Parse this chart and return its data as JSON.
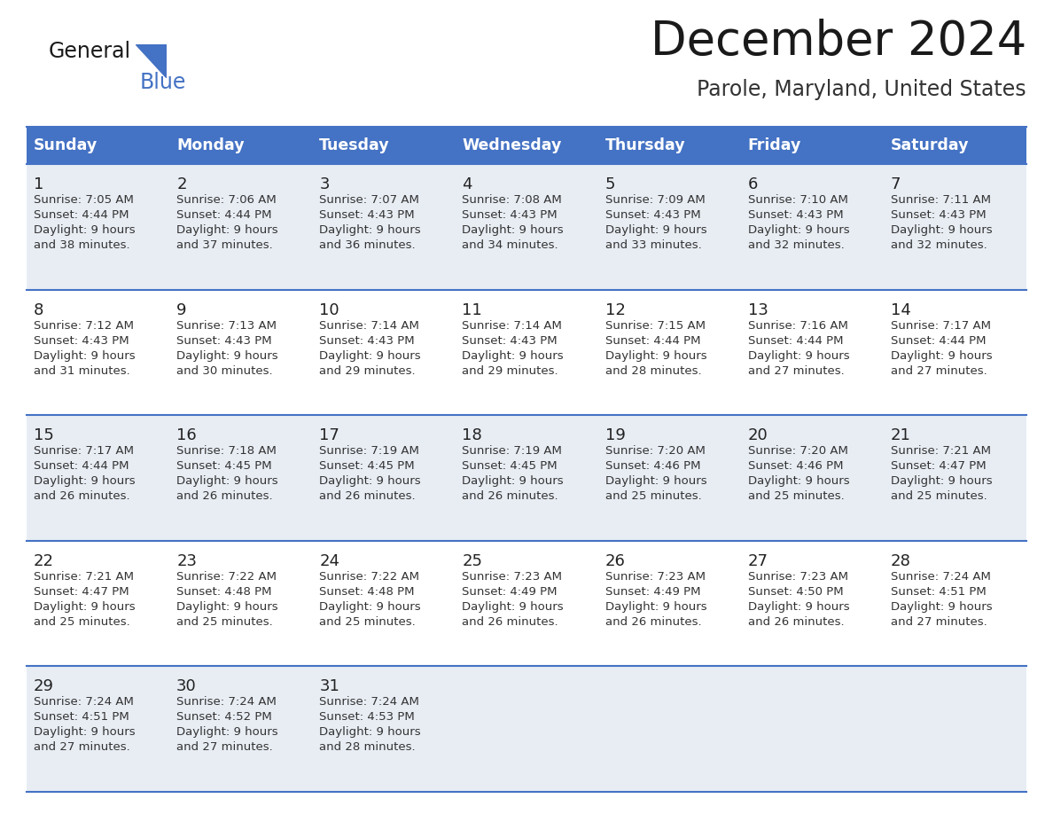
{
  "title": "December 2024",
  "subtitle": "Parole, Maryland, United States",
  "header_color": "#4472C4",
  "header_text_color": "#FFFFFF",
  "row_colors": [
    "#E8EDF4",
    "#FFFFFF"
  ],
  "day_names": [
    "Sunday",
    "Monday",
    "Tuesday",
    "Wednesday",
    "Thursday",
    "Friday",
    "Saturday"
  ],
  "weeks": [
    [
      {
        "day": 1,
        "sunrise": "7:05 AM",
        "sunset": "4:44 PM",
        "daylight": "9 hours and 38 minutes."
      },
      {
        "day": 2,
        "sunrise": "7:06 AM",
        "sunset": "4:44 PM",
        "daylight": "9 hours and 37 minutes."
      },
      {
        "day": 3,
        "sunrise": "7:07 AM",
        "sunset": "4:43 PM",
        "daylight": "9 hours and 36 minutes."
      },
      {
        "day": 4,
        "sunrise": "7:08 AM",
        "sunset": "4:43 PM",
        "daylight": "9 hours and 34 minutes."
      },
      {
        "day": 5,
        "sunrise": "7:09 AM",
        "sunset": "4:43 PM",
        "daylight": "9 hours and 33 minutes."
      },
      {
        "day": 6,
        "sunrise": "7:10 AM",
        "sunset": "4:43 PM",
        "daylight": "9 hours and 32 minutes."
      },
      {
        "day": 7,
        "sunrise": "7:11 AM",
        "sunset": "4:43 PM",
        "daylight": "9 hours and 32 minutes."
      }
    ],
    [
      {
        "day": 8,
        "sunrise": "7:12 AM",
        "sunset": "4:43 PM",
        "daylight": "9 hours and 31 minutes."
      },
      {
        "day": 9,
        "sunrise": "7:13 AM",
        "sunset": "4:43 PM",
        "daylight": "9 hours and 30 minutes."
      },
      {
        "day": 10,
        "sunrise": "7:14 AM",
        "sunset": "4:43 PM",
        "daylight": "9 hours and 29 minutes."
      },
      {
        "day": 11,
        "sunrise": "7:14 AM",
        "sunset": "4:43 PM",
        "daylight": "9 hours and 29 minutes."
      },
      {
        "day": 12,
        "sunrise": "7:15 AM",
        "sunset": "4:44 PM",
        "daylight": "9 hours and 28 minutes."
      },
      {
        "day": 13,
        "sunrise": "7:16 AM",
        "sunset": "4:44 PM",
        "daylight": "9 hours and 27 minutes."
      },
      {
        "day": 14,
        "sunrise": "7:17 AM",
        "sunset": "4:44 PM",
        "daylight": "9 hours and 27 minutes."
      }
    ],
    [
      {
        "day": 15,
        "sunrise": "7:17 AM",
        "sunset": "4:44 PM",
        "daylight": "9 hours and 26 minutes."
      },
      {
        "day": 16,
        "sunrise": "7:18 AM",
        "sunset": "4:45 PM",
        "daylight": "9 hours and 26 minutes."
      },
      {
        "day": 17,
        "sunrise": "7:19 AM",
        "sunset": "4:45 PM",
        "daylight": "9 hours and 26 minutes."
      },
      {
        "day": 18,
        "sunrise": "7:19 AM",
        "sunset": "4:45 PM",
        "daylight": "9 hours and 26 minutes."
      },
      {
        "day": 19,
        "sunrise": "7:20 AM",
        "sunset": "4:46 PM",
        "daylight": "9 hours and 25 minutes."
      },
      {
        "day": 20,
        "sunrise": "7:20 AM",
        "sunset": "4:46 PM",
        "daylight": "9 hours and 25 minutes."
      },
      {
        "day": 21,
        "sunrise": "7:21 AM",
        "sunset": "4:47 PM",
        "daylight": "9 hours and 25 minutes."
      }
    ],
    [
      {
        "day": 22,
        "sunrise": "7:21 AM",
        "sunset": "4:47 PM",
        "daylight": "9 hours and 25 minutes."
      },
      {
        "day": 23,
        "sunrise": "7:22 AM",
        "sunset": "4:48 PM",
        "daylight": "9 hours and 25 minutes."
      },
      {
        "day": 24,
        "sunrise": "7:22 AM",
        "sunset": "4:48 PM",
        "daylight": "9 hours and 25 minutes."
      },
      {
        "day": 25,
        "sunrise": "7:23 AM",
        "sunset": "4:49 PM",
        "daylight": "9 hours and 26 minutes."
      },
      {
        "day": 26,
        "sunrise": "7:23 AM",
        "sunset": "4:49 PM",
        "daylight": "9 hours and 26 minutes."
      },
      {
        "day": 27,
        "sunrise": "7:23 AM",
        "sunset": "4:50 PM",
        "daylight": "9 hours and 26 minutes."
      },
      {
        "day": 28,
        "sunrise": "7:24 AM",
        "sunset": "4:51 PM",
        "daylight": "9 hours and 27 minutes."
      }
    ],
    [
      {
        "day": 29,
        "sunrise": "7:24 AM",
        "sunset": "4:51 PM",
        "daylight": "9 hours and 27 minutes."
      },
      {
        "day": 30,
        "sunrise": "7:24 AM",
        "sunset": "4:52 PM",
        "daylight": "9 hours and 27 minutes."
      },
      {
        "day": 31,
        "sunrise": "7:24 AM",
        "sunset": "4:53 PM",
        "daylight": "9 hours and 28 minutes."
      },
      null,
      null,
      null,
      null
    ]
  ],
  "fig_width": 11.88,
  "fig_height": 9.18,
  "dpi": 100
}
